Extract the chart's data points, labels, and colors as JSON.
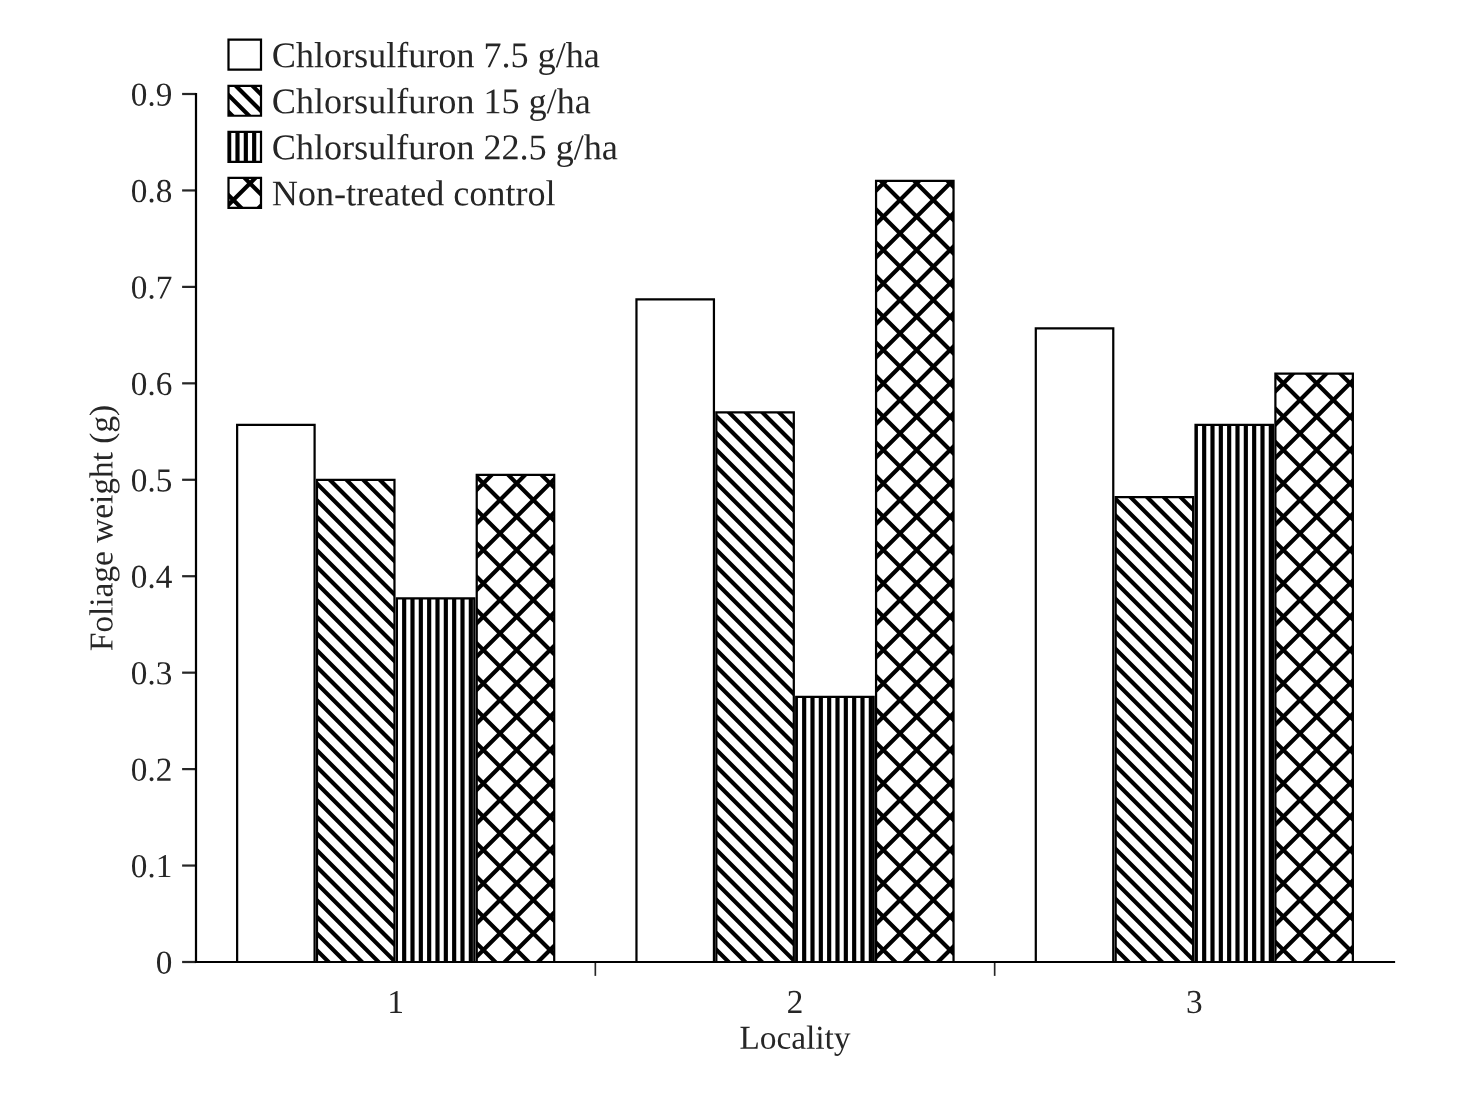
{
  "chart_data": {
    "type": "bar",
    "xlabel": "Locality",
    "ylabel": "Foliage weight (g)",
    "categories": [
      "1",
      "2",
      "3"
    ],
    "series": [
      {
        "name": "Chlorsulfuron 7.5 g/ha",
        "color": "#ffffff",
        "values": [
          0.557,
          0.687,
          0.657
        ]
      },
      {
        "name": "Chlorsulfuron 15 g/ha",
        "color": "#000000",
        "values": [
          0.5,
          0.57,
          0.482
        ]
      },
      {
        "name": "Chlorsulfuron 22.5 g/ha",
        "color": "#000000",
        "values": [
          0.377,
          0.275,
          0.557
        ]
      },
      {
        "name": "Non-treated control",
        "color": "#000000",
        "values": [
          0.505,
          0.81,
          0.61
        ]
      }
    ],
    "ylim": [
      0,
      0.9
    ],
    "yticks": [
      {
        "value": 0,
        "label": "0"
      },
      0.1,
      0.2,
      0.3,
      0.4,
      0.5,
      0.6,
      0.7,
      0.8,
      0.9
    ],
    "grid": false,
    "legend": "top left"
  }
}
